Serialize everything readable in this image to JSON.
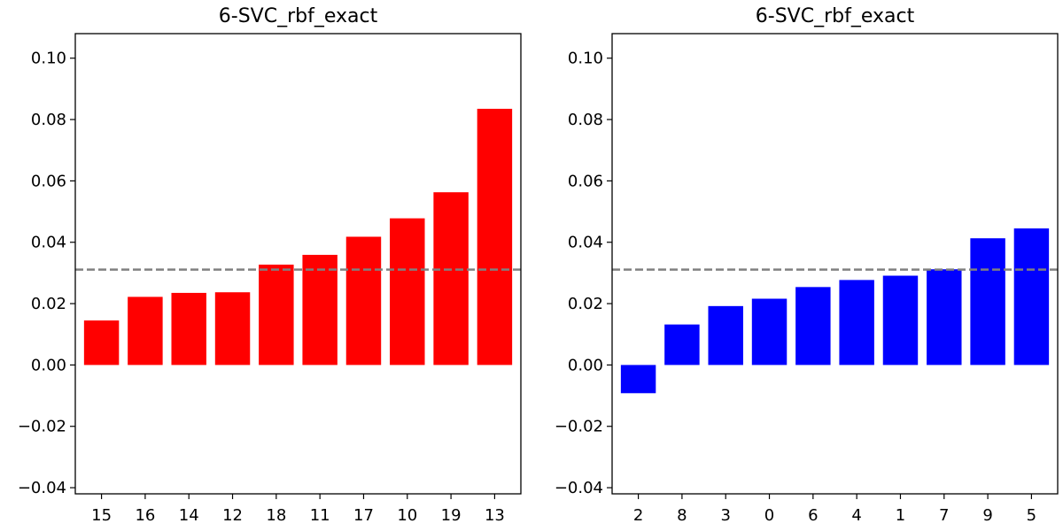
{
  "chart_data": [
    {
      "type": "bar",
      "title": "6-SVC_rbf_exact",
      "categories": [
        "15",
        "16",
        "14",
        "12",
        "18",
        "11",
        "17",
        "10",
        "19",
        "13"
      ],
      "values": [
        0.0145,
        0.0222,
        0.0235,
        0.0237,
        0.0327,
        0.0359,
        0.0418,
        0.0478,
        0.0563,
        0.0835
      ],
      "bar_color": "#ff0000",
      "reference_line": {
        "value": 0.0311,
        "style": "dashed",
        "color": "#808080"
      },
      "ylim": [
        -0.042,
        0.108
      ],
      "yticks": [
        "0.10",
        "0.08",
        "0.06",
        "0.04",
        "0.02",
        "0.00",
        "−0.02",
        "−0.04"
      ],
      "ytick_values": [
        0.1,
        0.08,
        0.06,
        0.04,
        0.02,
        0.0,
        -0.02,
        -0.04
      ],
      "xlabel": "",
      "ylabel": "",
      "grid": false
    },
    {
      "type": "bar",
      "title": "6-SVC_rbf_exact",
      "categories": [
        "2",
        "8",
        "3",
        "0",
        "6",
        "4",
        "1",
        "7",
        "9",
        "5"
      ],
      "values": [
        -0.0092,
        0.0132,
        0.0192,
        0.0216,
        0.0254,
        0.0277,
        0.0291,
        0.0312,
        0.0413,
        0.0445
      ],
      "bar_color": "#0000ff",
      "reference_line": {
        "value": 0.0311,
        "style": "dashed",
        "color": "#808080"
      },
      "ylim": [
        -0.042,
        0.108
      ],
      "yticks": [
        "0.10",
        "0.08",
        "0.06",
        "0.04",
        "0.02",
        "0.00",
        "−0.02",
        "−0.04"
      ],
      "ytick_values": [
        0.1,
        0.08,
        0.06,
        0.04,
        0.02,
        0.0,
        -0.02,
        -0.04
      ],
      "xlabel": "",
      "ylabel": "",
      "grid": false
    }
  ]
}
